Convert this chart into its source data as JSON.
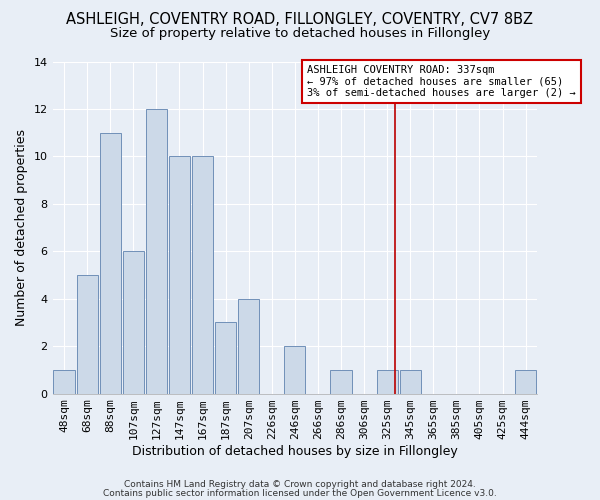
{
  "title1": "ASHLEIGH, COVENTRY ROAD, FILLONGLEY, COVENTRY, CV7 8BZ",
  "title2": "Size of property relative to detached houses in Fillongley",
  "xlabel": "Distribution of detached houses by size in Fillongley",
  "ylabel": "Number of detached properties",
  "categories": [
    "48sqm",
    "68sqm",
    "88sqm",
    "107sqm",
    "127sqm",
    "147sqm",
    "167sqm",
    "187sqm",
    "207sqm",
    "226sqm",
    "246sqm",
    "266sqm",
    "286sqm",
    "306sqm",
    "325sqm",
    "345sqm",
    "365sqm",
    "385sqm",
    "405sqm",
    "425sqm",
    "444sqm"
  ],
  "values": [
    1,
    5,
    11,
    6,
    12,
    10,
    10,
    3,
    4,
    0,
    2,
    0,
    1,
    0,
    1,
    1,
    0,
    0,
    0,
    0,
    1
  ],
  "bar_color": "#ccd9e8",
  "bar_edge_color": "#7090b8",
  "background_color": "#e8eef6",
  "grid_color": "#ffffff",
  "vline_x": 14.35,
  "vline_color": "#bb0000",
  "annotation_text": "ASHLEIGH COVENTRY ROAD: 337sqm\n← 97% of detached houses are smaller (65)\n3% of semi-detached houses are larger (2) →",
  "annotation_box_color": "#ffffff",
  "annotation_box_edge_color": "#cc0000",
  "ylim": [
    0,
    14
  ],
  "yticks": [
    0,
    2,
    4,
    6,
    8,
    10,
    12,
    14
  ],
  "footer1": "Contains HM Land Registry data © Crown copyright and database right 2024.",
  "footer2": "Contains public sector information licensed under the Open Government Licence v3.0.",
  "title1_fontsize": 10.5,
  "title2_fontsize": 9.5,
  "axis_label_fontsize": 9,
  "tick_fontsize": 8,
  "annotation_fontsize": 7.5,
  "footer_fontsize": 6.5
}
